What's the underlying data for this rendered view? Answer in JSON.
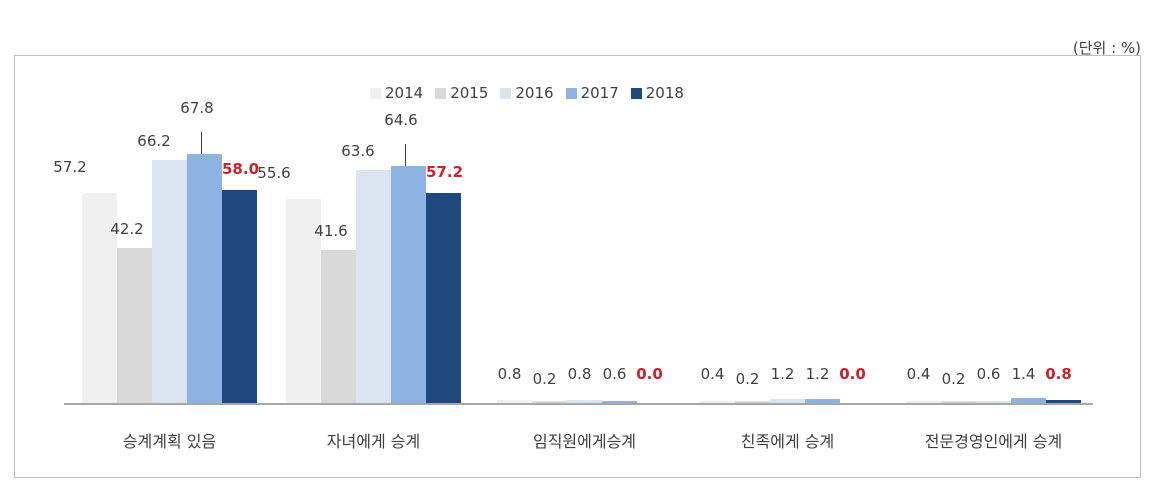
{
  "unit_label": "(단위 : %)",
  "legend": [
    {
      "label": "2014",
      "color": "#f0f0f0"
    },
    {
      "label": "2015",
      "color": "#d9d9d9"
    },
    {
      "label": "2016",
      "color": "#dbe5f1"
    },
    {
      "label": "2017",
      "color": "#8db3e2"
    },
    {
      "label": "2018",
      "color": "#1f497d"
    }
  ],
  "highlight_color": "#d0202a",
  "chart_data": {
    "type": "bar",
    "title": "",
    "unit": "%",
    "xlabel": "",
    "ylabel": "",
    "ylim": [
      0,
      70
    ],
    "grid": false,
    "legend_position": "top",
    "categories": [
      "승계계획 있음",
      "자녀에게 승계",
      "임직원에게승계",
      "친족에게 승계",
      "전문경영인에게 승계"
    ],
    "series": [
      {
        "name": "2014",
        "values": [
          57.2,
          55.6,
          0.8,
          0.4,
          0.4
        ]
      },
      {
        "name": "2015",
        "values": [
          42.2,
          41.6,
          0.2,
          0.2,
          0.2
        ]
      },
      {
        "name": "2016",
        "values": [
          66.2,
          63.6,
          0.8,
          1.2,
          0.6
        ]
      },
      {
        "name": "2017",
        "values": [
          67.8,
          64.6,
          0.6,
          1.2,
          1.4
        ]
      },
      {
        "name": "2018",
        "values": [
          58.0,
          57.2,
          0.0,
          0.0,
          0.8
        ]
      }
    ],
    "value_labels": [
      [
        "57.2",
        "42.2",
        "66.2",
        "67.8",
        "58.0"
      ],
      [
        "55.6",
        "41.6",
        "63.6",
        "64.6",
        "57.2"
      ],
      [
        "0.8",
        "0.2",
        "0.8",
        "0.6",
        "0.0"
      ],
      [
        "0.4",
        "0.2",
        "1.2",
        "1.2",
        "0.0"
      ],
      [
        "0.4",
        "0.2",
        "0.6",
        "1.4",
        "0.8"
      ]
    ],
    "highlighted_series": "2018"
  }
}
